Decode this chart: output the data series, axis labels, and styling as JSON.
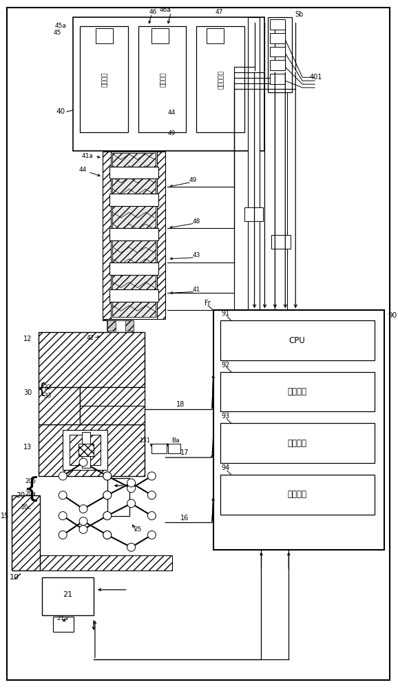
{
  "bg": "#ffffff",
  "lc": "#000000",
  "cpu_labels": [
    "CPU",
    "存储介质",
    "输入接口",
    "输出接口"
  ],
  "motor_labels": [
    "计量马达",
    "注射马达",
    "压力检测器"
  ]
}
